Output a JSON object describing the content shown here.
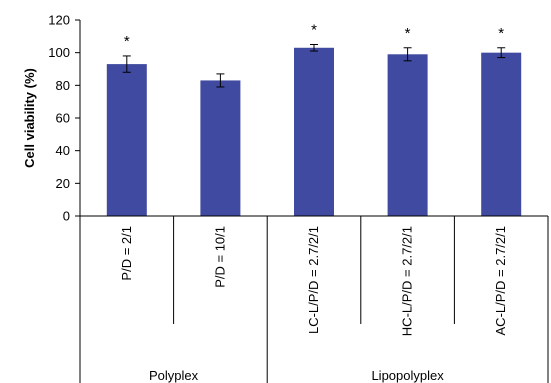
{
  "chart_data": {
    "type": "bar",
    "title": "",
    "xlabel": "",
    "ylabel": "Cell viability (%)",
    "ylim": [
      0,
      120
    ],
    "yticks": [
      0,
      20,
      40,
      60,
      80,
      100,
      120
    ],
    "grid": false,
    "legend": "none",
    "bar_color": "#3f4aa0",
    "categories": [
      "P/D = 2/1",
      "P/D = 10/1",
      "LC-L/P/D = 2.7/2/1",
      "HC-L/P/D = 2.7/2/1",
      "AC-L/P/D = 2.7/2/1"
    ],
    "values": [
      93,
      83,
      103,
      99,
      100
    ],
    "error": [
      5,
      4,
      2,
      4,
      3
    ],
    "significance": [
      "*",
      "",
      "*",
      "*",
      "*"
    ],
    "groups": [
      {
        "label": "Polyplex",
        "categories": [
          "P/D = 2/1",
          "P/D = 10/1"
        ]
      },
      {
        "label": "Lipopolyplex",
        "categories": [
          "LC-L/P/D = 2.7/2/1",
          "HC-L/P/D = 2.7/2/1",
          "AC-L/P/D = 2.7/2/1"
        ]
      }
    ]
  }
}
